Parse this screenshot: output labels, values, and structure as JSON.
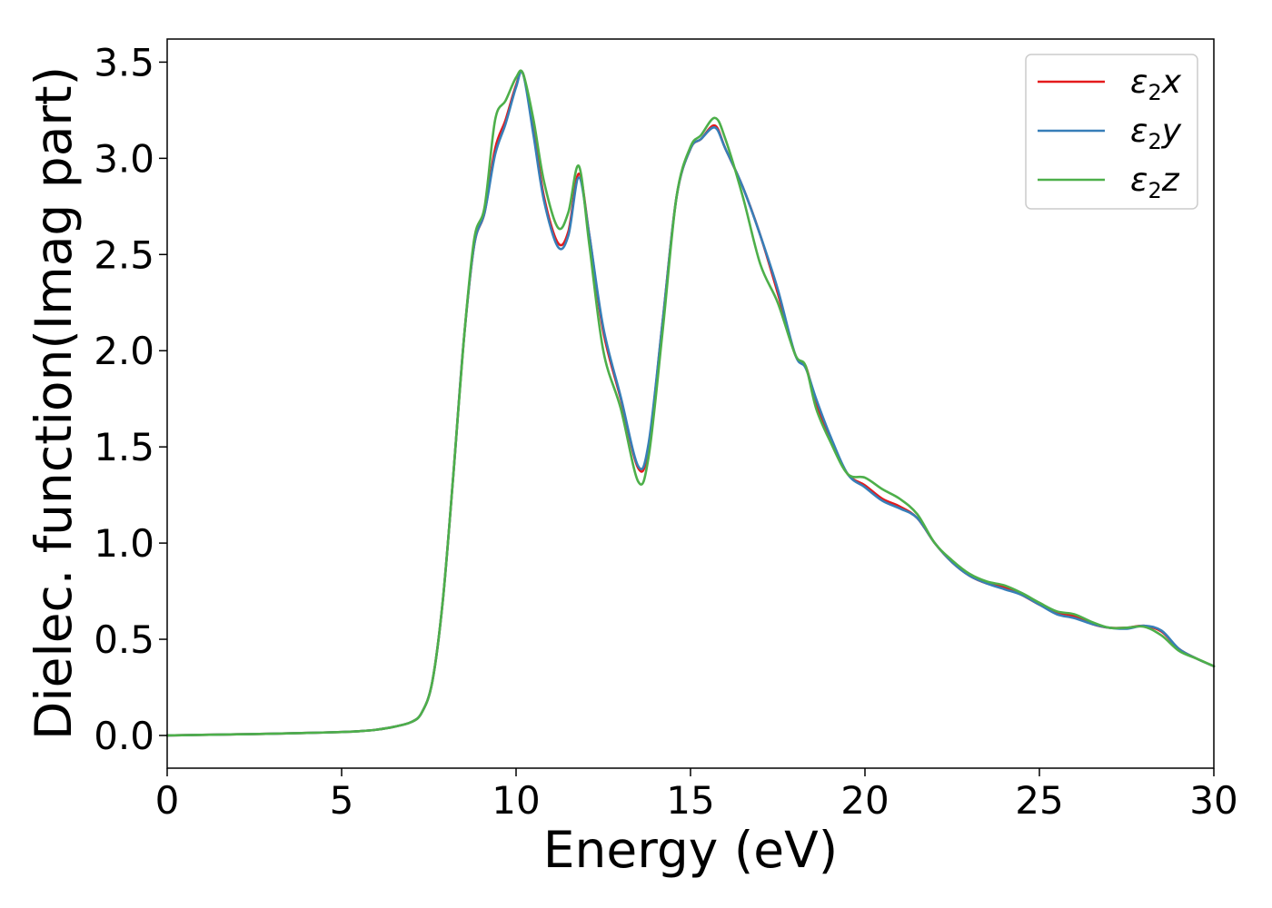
{
  "chart_data": {
    "type": "line",
    "title": "",
    "xlabel": "Energy (eV)",
    "ylabel": "Dielec. function(Imag part)",
    "xlim": [
      0,
      30
    ],
    "ylim": [
      -0.17,
      3.62
    ],
    "xticks": [
      0,
      5,
      10,
      15,
      20,
      25,
      30
    ],
    "xtick_labels": [
      "0",
      "5",
      "10",
      "15",
      "20",
      "25",
      "30"
    ],
    "yticks": [
      0.0,
      0.5,
      1.0,
      1.5,
      2.0,
      2.5,
      3.0,
      3.5
    ],
    "ytick_labels": [
      "0.0",
      "0.5",
      "1.0",
      "1.5",
      "2.0",
      "2.5",
      "3.0",
      "3.5"
    ],
    "grid": false,
    "legend_position": "top-right",
    "x": [
      0,
      1,
      2,
      3,
      4,
      5,
      5.5,
      6,
      6.5,
      7,
      7.3,
      7.6,
      7.9,
      8.2,
      8.5,
      8.8,
      9.1,
      9.4,
      9.7,
      10.0,
      10.2,
      10.5,
      10.8,
      11.2,
      11.5,
      11.8,
      12.1,
      12.5,
      13.0,
      13.5,
      13.8,
      14.2,
      14.6,
      15.0,
      15.3,
      15.7,
      16.0,
      16.5,
      17.0,
      17.5,
      18.0,
      18.3,
      18.6,
      19.0,
      19.5,
      20.0,
      20.5,
      21.0,
      21.5,
      22.0,
      22.5,
      23.0,
      23.5,
      24.0,
      24.5,
      25.0,
      25.5,
      26.0,
      26.5,
      27.0,
      27.5,
      28.0,
      28.5,
      29.0,
      29.5,
      30.0
    ],
    "series": [
      {
        "name": "ε2x",
        "name_base": "ε",
        "name_sub": "2",
        "name_var": "x",
        "color": "#e41a1c",
        "values": [
          0.0,
          0.003,
          0.006,
          0.009,
          0.013,
          0.018,
          0.022,
          0.03,
          0.045,
          0.07,
          0.12,
          0.28,
          0.7,
          1.35,
          2.05,
          2.55,
          2.72,
          3.05,
          3.2,
          3.38,
          3.44,
          3.15,
          2.8,
          2.56,
          2.62,
          2.92,
          2.6,
          2.1,
          1.75,
          1.39,
          1.5,
          2.15,
          2.8,
          3.05,
          3.1,
          3.17,
          3.05,
          2.85,
          2.6,
          2.3,
          1.98,
          1.92,
          1.73,
          1.55,
          1.36,
          1.3,
          1.23,
          1.19,
          1.13,
          1.0,
          0.9,
          0.83,
          0.79,
          0.77,
          0.73,
          0.68,
          0.64,
          0.62,
          0.58,
          0.56,
          0.56,
          0.57,
          0.54,
          0.45,
          0.4,
          0.36
        ]
      },
      {
        "name": "ε2y",
        "name_base": "ε",
        "name_sub": "2",
        "name_var": "y",
        "color": "#377eb8",
        "values": [
          0.0,
          0.003,
          0.006,
          0.009,
          0.013,
          0.018,
          0.022,
          0.03,
          0.045,
          0.07,
          0.12,
          0.28,
          0.7,
          1.35,
          2.05,
          2.55,
          2.72,
          3.02,
          3.18,
          3.37,
          3.44,
          3.12,
          2.78,
          2.54,
          2.6,
          2.9,
          2.6,
          2.12,
          1.76,
          1.4,
          1.52,
          2.15,
          2.8,
          3.05,
          3.1,
          3.16,
          3.05,
          2.85,
          2.6,
          2.32,
          1.98,
          1.91,
          1.75,
          1.56,
          1.36,
          1.29,
          1.22,
          1.18,
          1.13,
          1.0,
          0.9,
          0.83,
          0.79,
          0.76,
          0.73,
          0.68,
          0.63,
          0.61,
          0.58,
          0.56,
          0.555,
          0.57,
          0.545,
          0.45,
          0.4,
          0.36
        ]
      },
      {
        "name": "ε2z",
        "name_base": "ε",
        "name_sub": "2",
        "name_var": "z",
        "color": "#4daf4a",
        "values": [
          0.0,
          0.003,
          0.006,
          0.009,
          0.013,
          0.018,
          0.022,
          0.03,
          0.045,
          0.07,
          0.12,
          0.28,
          0.7,
          1.35,
          2.05,
          2.58,
          2.75,
          3.2,
          3.3,
          3.42,
          3.44,
          3.2,
          2.88,
          2.64,
          2.72,
          2.96,
          2.55,
          2.0,
          1.7,
          1.32,
          1.45,
          2.1,
          2.8,
          3.06,
          3.12,
          3.21,
          3.1,
          2.8,
          2.45,
          2.25,
          1.98,
          1.92,
          1.7,
          1.53,
          1.36,
          1.34,
          1.28,
          1.23,
          1.15,
          1.0,
          0.91,
          0.84,
          0.8,
          0.78,
          0.74,
          0.69,
          0.645,
          0.63,
          0.59,
          0.56,
          0.56,
          0.565,
          0.52,
          0.44,
          0.4,
          0.36
        ]
      }
    ]
  }
}
